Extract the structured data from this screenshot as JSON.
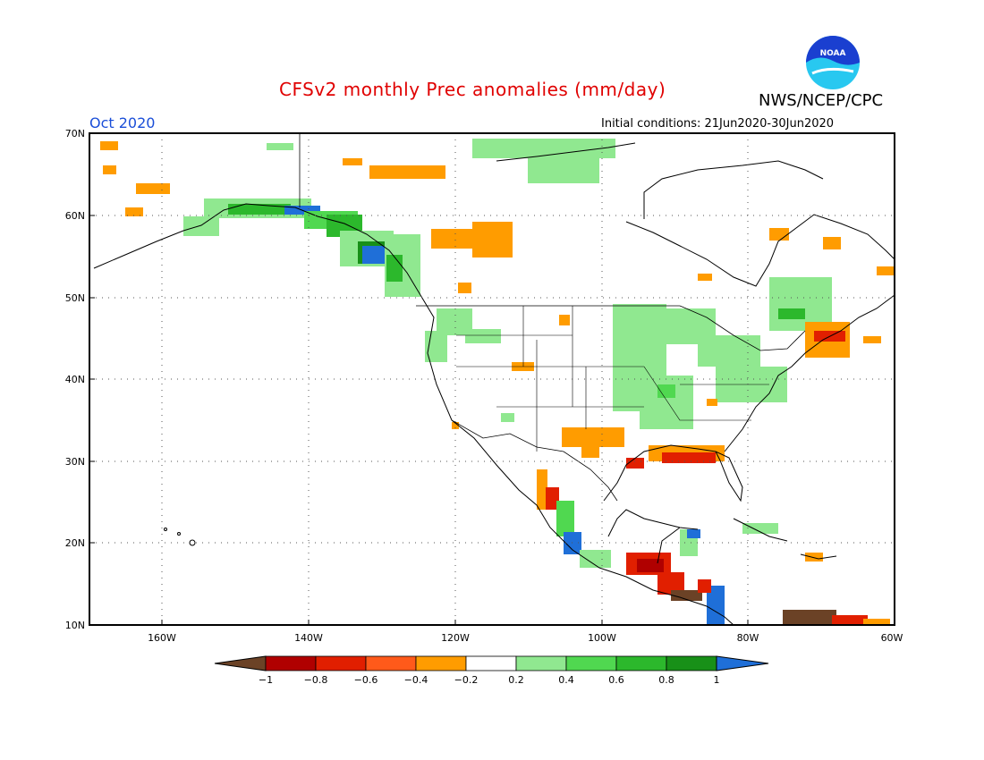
{
  "title": "CFSv2 monthly Prec anomalies (mm/day)",
  "org": "NWS/NCEP/CPC",
  "logo_text": "NOAA",
  "month": "Oct 2020",
  "initial_conditions": "Initial conditions: 21Jun2020-30Jun2020",
  "lat_labels": [
    "70N",
    "60N",
    "50N",
    "40N",
    "30N",
    "20N",
    "10N"
  ],
  "lon_labels": [
    "160W",
    "140W",
    "120W",
    "100W",
    "80W",
    "60W"
  ],
  "legend": {
    "labels": [
      "-1",
      "-0.8",
      "-0.6",
      "-0.4",
      "-0.2",
      "0.2",
      "0.4",
      "0.6",
      "0.8",
      "1"
    ],
    "colors": [
      "#6b4226",
      "#b00000",
      "#e11f00",
      "#ff5a1a",
      "#ff9c00",
      "#ffffff",
      "#90e890",
      "#50d850",
      "#2cb82c",
      "#189018",
      "#1f6fd8"
    ]
  },
  "colors": {
    "title": "#e00000",
    "month": "#1a4ed8",
    "noaa_blue": "#1a3fd0",
    "noaa_cyan": "#28c8f0"
  }
}
